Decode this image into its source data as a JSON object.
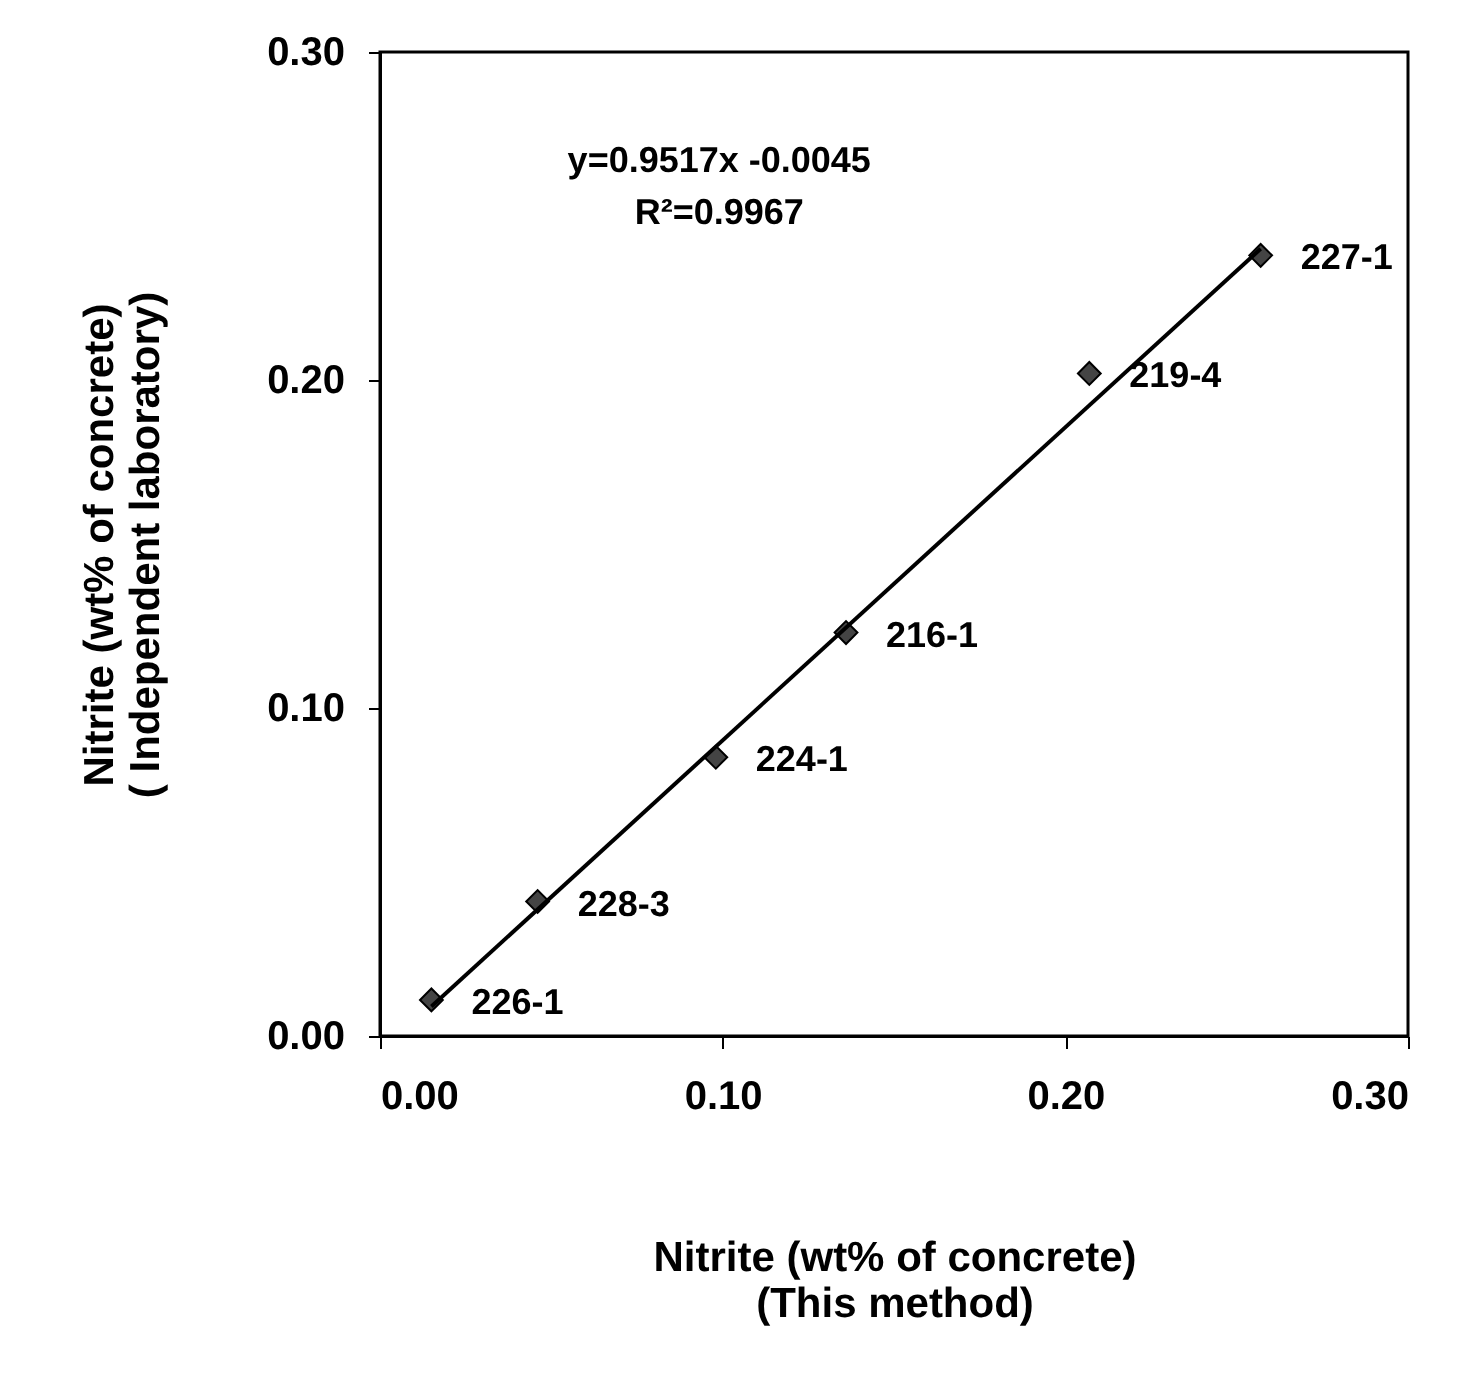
{
  "chart_data": {
    "type": "scatter",
    "xlabel": "Nitrite (wt% of concrete)\n(This method)",
    "ylabel": "Nitrite (wt% of concrete)\n( Independent laboratory)",
    "xlim": [
      0,
      0.3
    ],
    "xticks": [
      {
        "value": 0,
        "label": "0.00"
      },
      {
        "value": 0.1,
        "label": "0.10"
      },
      {
        "value": 0.2,
        "label": "0.20"
      },
      {
        "value": 0.3,
        "label": "0.30"
      }
    ],
    "ylim": [
      0,
      0.3
    ],
    "yticks": [
      {
        "value": 0,
        "label": "0.00"
      },
      {
        "value": 0.1,
        "label": "0.10"
      },
      {
        "value": 0.2,
        "label": "0.20"
      },
      {
        "value": 0.3,
        "label": "0.30"
      }
    ],
    "grid": false,
    "series": [
      {
        "type": "scatter",
        "marker": "diamond",
        "color": "#444444",
        "x": [
          0.015,
          0.046,
          0.098,
          0.136,
          0.207,
          0.257
        ],
        "values": [
          0.011,
          0.041,
          0.085,
          0.123,
          0.202,
          0.238
        ]
      },
      {
        "type": "line",
        "marker": "none",
        "line_style": "solid",
        "color": "#000000",
        "x": [
          0.015,
          0.257
        ],
        "values": [
          0.009,
          0.24
        ]
      }
    ],
    "annotations": [
      "y=0.9517x -0.0045",
      "R²=0.9967",
      {
        "text": "226-1",
        "x": 0.015,
        "y": 0.011
      },
      {
        "text": "228-3",
        "x": 0.046,
        "y": 0.041
      },
      {
        "text": "224-1",
        "x": 0.098,
        "y": 0.085
      },
      {
        "text": "216-1",
        "x": 0.136,
        "y": 0.123
      },
      {
        "text": "219-4",
        "x": 0.207,
        "y": 0.202
      },
      {
        "text": "227-1",
        "x": 0.257,
        "y": 0.238
      }
    ]
  }
}
